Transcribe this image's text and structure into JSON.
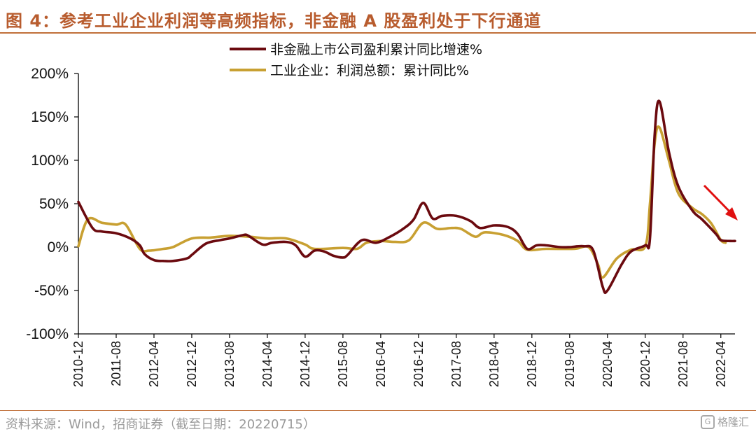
{
  "figure": {
    "title": "图 4：参考工业企业利润等高频指标，非金融 A 股盈利处于下行通道",
    "source": "资料来源：Wind，招商证券（截至日期：20220715）",
    "watermark": "格隆汇",
    "watermark_mark": "G"
  },
  "chart_data": {
    "type": "line",
    "title": "",
    "xlabel": "",
    "ylabel": "",
    "ylim": [
      -100,
      200
    ],
    "yticks": [
      -100,
      -50,
      0,
      50,
      100,
      150,
      200
    ],
    "ytick_labels": [
      "-100%",
      "-50%",
      "0%",
      "50%",
      "100%",
      "150%",
      "200%"
    ],
    "x_start": "2010-12",
    "x_end": "2022-07",
    "xtick_labels": [
      "2010-12",
      "2011-08",
      "2012-04",
      "2012-12",
      "2013-08",
      "2014-04",
      "2014-12",
      "2015-08",
      "2016-04",
      "2016-12",
      "2017-08",
      "2018-04",
      "2018-12",
      "2019-08",
      "2020-04",
      "2020-12",
      "2021-08",
      "2022-04"
    ],
    "grid": false,
    "legend_position": "top",
    "annotation": "downward red arrow near latest data indicating declining trend",
    "colors": {
      "axis": "#000000",
      "arrow": "#e01010"
    },
    "series": [
      {
        "name": "非金融上市公司盈利累计同比增速%",
        "color": "#6b0a0f",
        "points": [
          [
            "2010-12",
            52
          ],
          [
            "2011-03",
            22
          ],
          [
            "2011-05",
            18
          ],
          [
            "2011-08",
            16
          ],
          [
            "2011-11",
            10
          ],
          [
            "2012-01",
            2
          ],
          [
            "2012-02",
            -8
          ],
          [
            "2012-04",
            -15
          ],
          [
            "2012-06",
            -16
          ],
          [
            "2012-08",
            -16
          ],
          [
            "2012-11",
            -13
          ],
          [
            "2012-12",
            -9
          ],
          [
            "2013-03",
            4
          ],
          [
            "2013-06",
            8
          ],
          [
            "2013-08",
            10
          ],
          [
            "2013-11",
            14
          ],
          [
            "2013-12",
            13
          ],
          [
            "2014-03",
            3
          ],
          [
            "2014-05",
            5
          ],
          [
            "2014-08",
            6
          ],
          [
            "2014-10",
            2
          ],
          [
            "2014-12",
            -11
          ],
          [
            "2015-02",
            -4
          ],
          [
            "2015-04",
            -5
          ],
          [
            "2015-06",
            -10
          ],
          [
            "2015-08",
            -12
          ],
          [
            "2015-09",
            -9
          ],
          [
            "2015-12",
            8
          ],
          [
            "2016-03",
            5
          ],
          [
            "2016-06",
            12
          ],
          [
            "2016-09",
            22
          ],
          [
            "2016-11",
            32
          ],
          [
            "2017-01",
            51
          ],
          [
            "2017-03",
            33
          ],
          [
            "2017-05",
            36
          ],
          [
            "2017-08",
            36
          ],
          [
            "2017-11",
            30
          ],
          [
            "2018-01",
            22
          ],
          [
            "2018-04",
            25
          ],
          [
            "2018-07",
            23
          ],
          [
            "2018-09",
            15
          ],
          [
            "2018-11",
            -2
          ],
          [
            "2019-01",
            2
          ],
          [
            "2019-03",
            2
          ],
          [
            "2019-06",
            0
          ],
          [
            "2019-08",
            0
          ],
          [
            "2019-11",
            1
          ],
          [
            "2020-01",
            -4
          ],
          [
            "2020-03",
            -46
          ],
          [
            "2020-04",
            -50
          ],
          [
            "2020-07",
            -20
          ],
          [
            "2020-09",
            -5
          ],
          [
            "2020-12",
            2
          ],
          [
            "2021-01",
            10
          ],
          [
            "2021-02",
            130
          ],
          [
            "2021-03",
            168
          ],
          [
            "2021-05",
            110
          ],
          [
            "2021-07",
            70
          ],
          [
            "2021-10",
            42
          ],
          [
            "2021-12",
            32
          ],
          [
            "2022-03",
            15
          ],
          [
            "2022-04",
            8
          ],
          [
            "2022-06",
            7
          ],
          [
            "2022-07",
            7
          ]
        ]
      },
      {
        "name": "工业企业：利润总额：累计同比%",
        "color": "#c8a032",
        "points": [
          [
            "2010-12",
            1
          ],
          [
            "2011-02",
            32
          ],
          [
            "2011-05",
            28
          ],
          [
            "2011-08",
            26
          ],
          [
            "2011-10",
            26
          ],
          [
            "2012-01",
            -2
          ],
          [
            "2012-03",
            -4
          ],
          [
            "2012-06",
            -2
          ],
          [
            "2012-08",
            0
          ],
          [
            "2012-12",
            10
          ],
          [
            "2013-04",
            11
          ],
          [
            "2013-08",
            13
          ],
          [
            "2013-12",
            12
          ],
          [
            "2014-04",
            10
          ],
          [
            "2014-08",
            10
          ],
          [
            "2014-12",
            3
          ],
          [
            "2015-02",
            -2
          ],
          [
            "2015-08",
            -1
          ],
          [
            "2015-11",
            -2
          ],
          [
            "2016-01",
            5
          ],
          [
            "2016-04",
            7
          ],
          [
            "2016-07",
            6
          ],
          [
            "2016-10",
            8
          ],
          [
            "2017-01",
            28
          ],
          [
            "2017-04",
            21
          ],
          [
            "2017-07",
            22
          ],
          [
            "2017-09",
            21
          ],
          [
            "2017-12",
            12
          ],
          [
            "2018-02",
            17
          ],
          [
            "2018-06",
            14
          ],
          [
            "2018-09",
            7
          ],
          [
            "2018-11",
            -3
          ],
          [
            "2019-03",
            -2
          ],
          [
            "2019-09",
            -2
          ],
          [
            "2019-12",
            0
          ],
          [
            "2020-02",
            -20
          ],
          [
            "2020-03",
            -35
          ],
          [
            "2020-06",
            -13
          ],
          [
            "2020-09",
            -3
          ],
          [
            "2020-12",
            1
          ],
          [
            "2021-01",
            50
          ],
          [
            "2021-02",
            120
          ],
          [
            "2021-03",
            138
          ],
          [
            "2021-05",
            100
          ],
          [
            "2021-07",
            62
          ],
          [
            "2021-10",
            45
          ],
          [
            "2021-12",
            38
          ],
          [
            "2022-02",
            27
          ],
          [
            "2022-04",
            8
          ],
          [
            "2022-05",
            5
          ]
        ]
      }
    ]
  }
}
